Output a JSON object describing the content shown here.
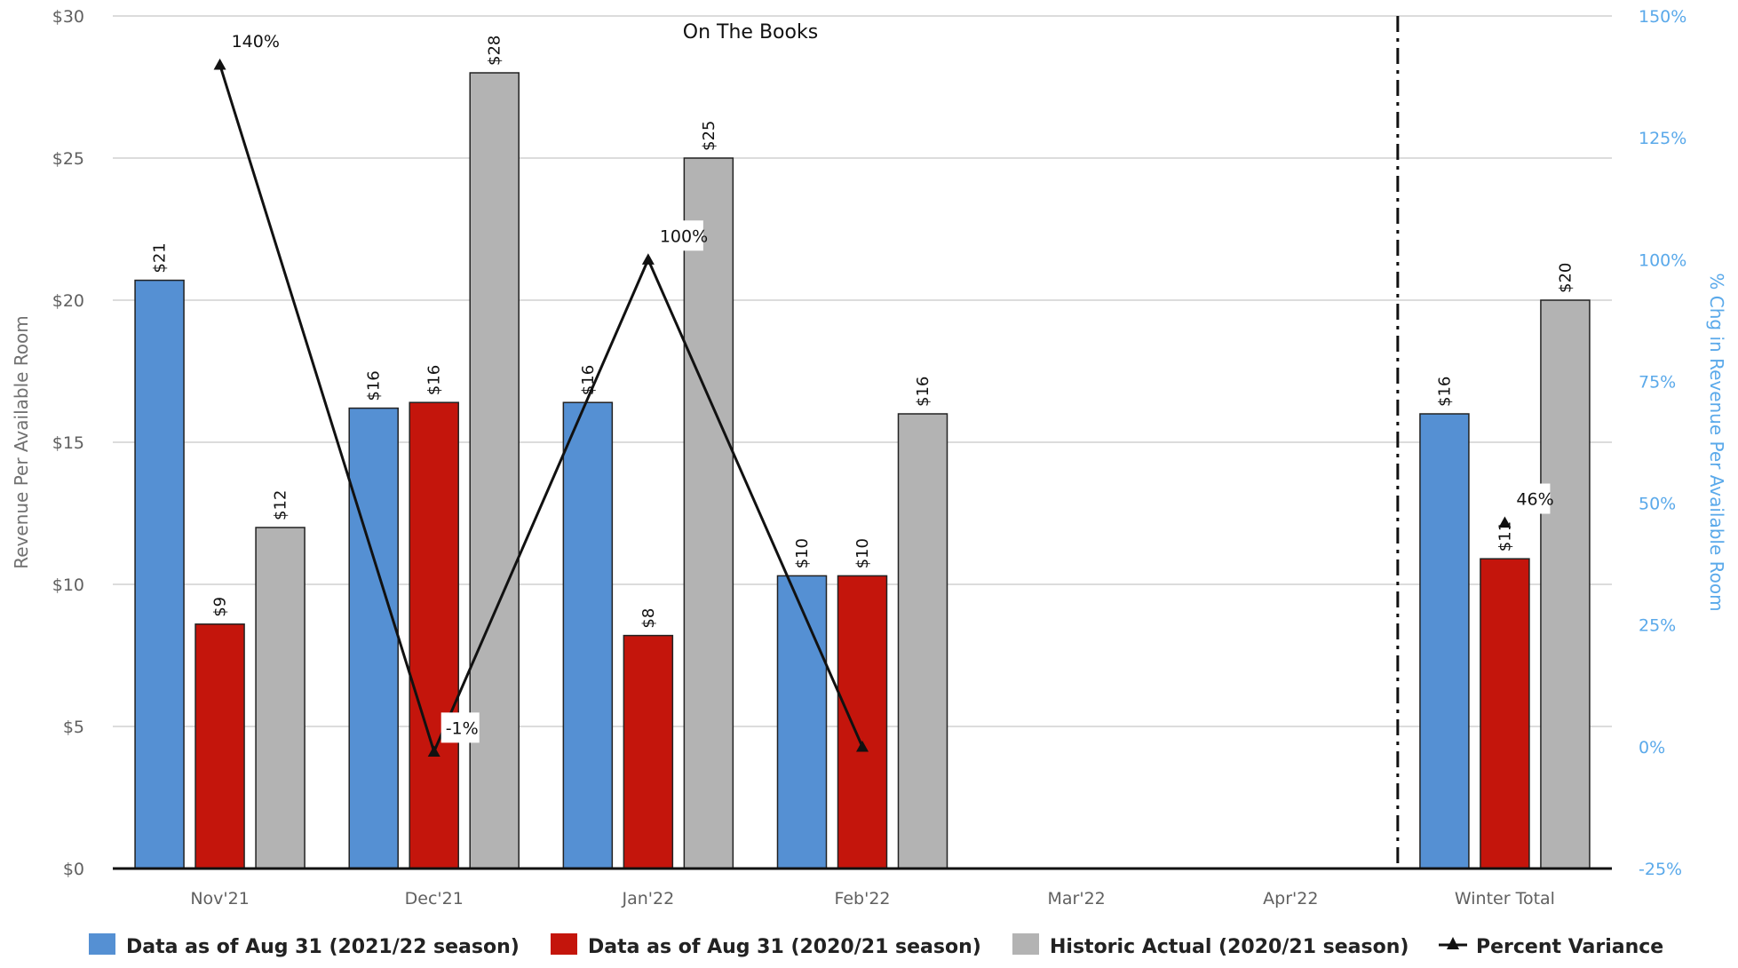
{
  "chart_data": {
    "type": "bar",
    "title": "",
    "annotation": "On The Books",
    "categories": [
      "Nov'21",
      "Dec'21",
      "Jan'22",
      "Feb'22",
      "Mar'22",
      "Apr'22",
      "Winter Total"
    ],
    "ylabel": "Revenue Per Available Room",
    "ylabel_right": "% Chg in Revenue Per Available Room",
    "ylim": [
      0,
      30
    ],
    "yticks": [
      "$0",
      "$5",
      "$10",
      "$15",
      "$20",
      "$25",
      "$30"
    ],
    "ylim_right": [
      -25,
      150
    ],
    "yticks_right": [
      "-25%",
      "0%",
      "25%",
      "50%",
      "75%",
      "100%",
      "125%",
      "150%"
    ],
    "grid": true,
    "legend_position": "bottom",
    "series": [
      {
        "name": "Data as of Aug 31 (2021/22 season)",
        "color": "#5590d3",
        "values": [
          20.7,
          16.2,
          16.4,
          10.3,
          null,
          null,
          16.0
        ],
        "labels": [
          "$21",
          "$16",
          "$16",
          "$10",
          "",
          "",
          "$16"
        ]
      },
      {
        "name": "Data as of Aug 31 (2020/21 season)",
        "color": "#c4150c",
        "values": [
          8.6,
          16.4,
          8.2,
          10.3,
          null,
          null,
          10.9
        ],
        "labels": [
          "$9",
          "$16",
          "$8",
          "$10",
          "",
          "",
          "$11"
        ]
      },
      {
        "name": "Historic Actual (2020/21 season)",
        "color": "#b3b3b3",
        "values": [
          12.0,
          28.0,
          25.0,
          16.0,
          null,
          null,
          20.0
        ],
        "labels": [
          "$12",
          "$28",
          "$25",
          "$16",
          "",
          "",
          "$20"
        ]
      }
    ],
    "line_series": {
      "name": "Percent Variance",
      "color": "#111111",
      "axis": "right",
      "values": [
        140,
        -1,
        100,
        0,
        null,
        null,
        46
      ],
      "labels": [
        "140%",
        "-1%",
        "100%",
        "",
        "",
        "",
        "46%"
      ]
    },
    "divider_before_category": "Winter Total"
  }
}
